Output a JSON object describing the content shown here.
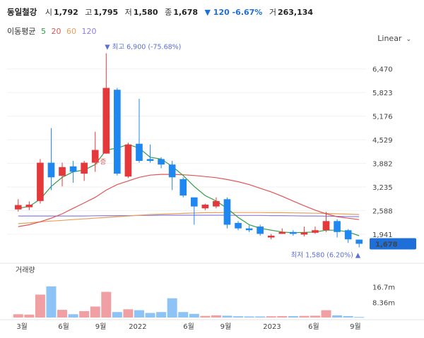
{
  "header": {
    "name": "동일철강",
    "open_label": "시",
    "open": "1,792",
    "high_label": "고",
    "high": "1,795",
    "low_label": "저",
    "low": "1,580",
    "close_label": "종",
    "close": "1,678",
    "change": "▼ 120 -6.67%",
    "volume_label": "거",
    "volume": "263,134"
  },
  "ma_legend": {
    "title": "이동평균",
    "periods": [
      "5",
      "20",
      "60",
      "120"
    ],
    "colors": [
      "#2f9e44",
      "#e05555",
      "#e8a05a",
      "#8a7fe0"
    ]
  },
  "scale_selector": {
    "label": "Linear"
  },
  "colors": {
    "up": "#e5383b",
    "down": "#1e88f0",
    "up_vol": "#f0a0a3",
    "down_vol": "#8ec3f5",
    "last_price_bg": "#1e6fd9"
  },
  "chart_data": {
    "type": "candlestick",
    "title": "동일철강",
    "price_ylim": [
      1300,
      7200
    ],
    "price_ticks": [
      "6,470",
      "5,823",
      "5,176",
      "4,529",
      "3,882",
      "3,235",
      "2,588",
      "1,941"
    ],
    "volume_label": "거래량",
    "volume_ticks": [
      "16.7m",
      "8.36m"
    ],
    "volume_ylim": [
      0,
      25
    ],
    "x_ticks": [
      "3월",
      "6월",
      "9월",
      "2022",
      "6월",
      "9월",
      "2023",
      "6월",
      "9월"
    ],
    "max_annotation": "▼ 최고 6,900 (-75.68%)",
    "min_annotation": "최저 1,580 (6.20%) ▲",
    "last_price": "1,678",
    "event_label": "무증",
    "candles": [
      {
        "o": 2620,
        "c": 2740,
        "h": 2900,
        "l": 2560,
        "v": 1.8
      },
      {
        "o": 2680,
        "c": 2750,
        "h": 2840,
        "l": 2600,
        "v": 1.6
      },
      {
        "o": 2850,
        "c": 3900,
        "h": 4000,
        "l": 2780,
        "v": 12.5
      },
      {
        "o": 3900,
        "c": 3500,
        "h": 4850,
        "l": 3150,
        "v": 17.0
      },
      {
        "o": 3540,
        "c": 3780,
        "h": 3900,
        "l": 3250,
        "v": 4.2
      },
      {
        "o": 3800,
        "c": 3650,
        "h": 3950,
        "l": 3350,
        "v": 1.8
      },
      {
        "o": 3600,
        "c": 3900,
        "h": 3950,
        "l": 3400,
        "v": 3.5
      },
      {
        "o": 3900,
        "c": 4250,
        "h": 4750,
        "l": 3650,
        "v": 6.0
      },
      {
        "o": 4150,
        "c": 5950,
        "h": 6900,
        "l": 4150,
        "v": 14.0
      },
      {
        "o": 5900,
        "c": 3600,
        "h": 5950,
        "l": 3550,
        "v": 3.0
      },
      {
        "o": 3520,
        "c": 4400,
        "h": 4450,
        "l": 3480,
        "v": 4.5
      },
      {
        "o": 4420,
        "c": 3950,
        "h": 5650,
        "l": 3900,
        "v": 4.0
      },
      {
        "o": 4000,
        "c": 3950,
        "h": 4400,
        "l": 3900,
        "v": 2.5
      },
      {
        "o": 4000,
        "c": 3850,
        "h": 4050,
        "l": 3750,
        "v": 3.0
      },
      {
        "o": 3850,
        "c": 3500,
        "h": 3950,
        "l": 3150,
        "v": 10.5
      },
      {
        "o": 3450,
        "c": 3000,
        "h": 3500,
        "l": 2950,
        "v": 3.0
      },
      {
        "o": 2950,
        "c": 2700,
        "h": 2950,
        "l": 2200,
        "v": 2.0
      },
      {
        "o": 2650,
        "c": 2750,
        "h": 2780,
        "l": 2600,
        "v": 0.9
      },
      {
        "o": 2700,
        "c": 2850,
        "h": 2950,
        "l": 2650,
        "v": 1.2
      },
      {
        "o": 2900,
        "c": 2200,
        "h": 2950,
        "l": 2100,
        "v": 1.0
      },
      {
        "o": 2250,
        "c": 2100,
        "h": 2300,
        "l": 2050,
        "v": 0.7
      },
      {
        "o": 2100,
        "c": 2050,
        "h": 2180,
        "l": 2000,
        "v": 0.6
      },
      {
        "o": 2150,
        "c": 1950,
        "h": 2200,
        "l": 1900,
        "v": 0.6
      },
      {
        "o": 1850,
        "c": 1900,
        "h": 1950,
        "l": 1800,
        "v": 0.7
      },
      {
        "o": 1950,
        "c": 2000,
        "h": 2100,
        "l": 1950,
        "v": 0.8
      },
      {
        "o": 2000,
        "c": 1950,
        "h": 2050,
        "l": 1900,
        "v": 0.8
      },
      {
        "o": 1930,
        "c": 1990,
        "h": 2150,
        "l": 1880,
        "v": 0.9
      },
      {
        "o": 1980,
        "c": 2050,
        "h": 2150,
        "l": 1950,
        "v": 1.0
      },
      {
        "o": 2050,
        "c": 2300,
        "h": 2550,
        "l": 2000,
        "v": 4.0
      },
      {
        "o": 2300,
        "c": 2000,
        "h": 2350,
        "l": 1850,
        "v": 1.2
      },
      {
        "o": 2050,
        "c": 1800,
        "h": 2080,
        "l": 1700,
        "v": 0.8
      },
      {
        "o": 1792,
        "c": 1678,
        "h": 1795,
        "l": 1580,
        "v": 0.3
      }
    ],
    "ma5": [
      2650,
      2700,
      2900,
      3250,
      3500,
      3650,
      3700,
      3850,
      4250,
      4300,
      4400,
      4300,
      4050,
      4000,
      3800,
      3550,
      3250,
      3000,
      2850,
      2650,
      2400,
      2200,
      2100,
      2050,
      2000,
      1980,
      1990,
      2000,
      2050,
      2050,
      2000,
      1900
    ],
    "ma20": [
      2150,
      2200,
      2280,
      2380,
      2500,
      2650,
      2800,
      2950,
      3150,
      3300,
      3400,
      3500,
      3560,
      3580,
      3580,
      3570,
      3550,
      3520,
      3490,
      3440,
      3380,
      3300,
      3200,
      3100,
      2980,
      2850,
      2720,
      2600,
      2500,
      2420,
      2380,
      2340
    ],
    "ma60": [
      2230,
      2250,
      2280,
      2300,
      2320,
      2340,
      2360,
      2380,
      2400,
      2420,
      2440,
      2460,
      2480,
      2490,
      2500,
      2510,
      2520,
      2530,
      2530,
      2535,
      2535,
      2535,
      2535,
      2530,
      2530,
      2525,
      2520,
      2515,
      2510,
      2500,
      2490,
      2480
    ],
    "ma120": [
      2440,
      2440,
      2440,
      2440,
      2440,
      2440,
      2440,
      2445,
      2450,
      2450,
      2450,
      2455,
      2455,
      2460,
      2460,
      2460,
      2460,
      2460,
      2460,
      2460,
      2455,
      2455,
      2455,
      2450,
      2450,
      2445,
      2440,
      2440,
      2435,
      2430,
      2425,
      2420
    ]
  }
}
